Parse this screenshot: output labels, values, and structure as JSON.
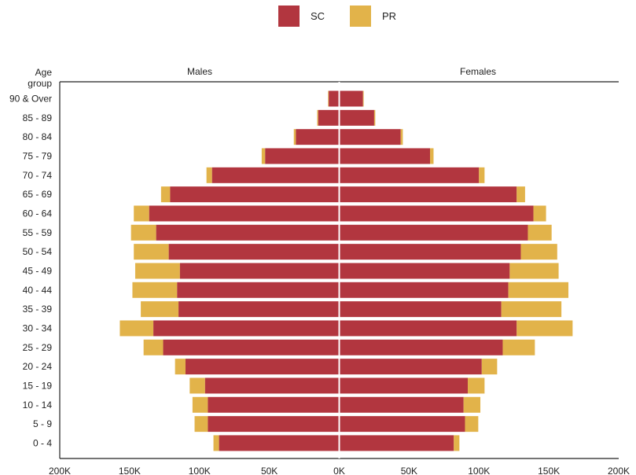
{
  "chart_data": {
    "type": "bar",
    "orientation": "horizontal",
    "stacked": true,
    "diverging": true,
    "legend_position": "top-center",
    "grid": false,
    "xlim": [
      -200000,
      200000
    ],
    "x_ticks": [
      -200000,
      -150000,
      -100000,
      -50000,
      0,
      50000,
      100000,
      150000,
      200000
    ],
    "x_tick_labels": [
      "200K",
      "150K",
      "100K",
      "50K",
      "0K",
      "50K",
      "100K",
      "150K",
      "200K"
    ],
    "y_axis_title_line1": "Age",
    "y_axis_title_line2": "group",
    "side_labels": {
      "left": "Males",
      "right": "Females"
    },
    "categories": [
      "90 & Over",
      "85 - 89",
      "80 - 84",
      "75 - 79",
      "70 - 74",
      "65 - 69",
      "60 - 64",
      "55 - 59",
      "50 - 54",
      "45 - 49",
      "40 - 44",
      "35 - 39",
      "30 - 34",
      "25 - 29",
      "20 - 24",
      "15 - 19",
      "10 - 14",
      "5 - 9",
      "0 - 4"
    ],
    "series": [
      {
        "name": "SC",
        "color": "#B2363F",
        "males": [
          7500,
          15000,
          31000,
          53000,
          91000,
          121000,
          136000,
          131000,
          122000,
          114000,
          116000,
          115000,
          133000,
          126000,
          110000,
          96000,
          94000,
          94000,
          86000
        ],
        "females": [
          17000,
          25000,
          44000,
          65000,
          100000,
          127000,
          139000,
          135000,
          130000,
          122000,
          121000,
          116000,
          127000,
          117000,
          102000,
          92000,
          89000,
          90000,
          82000
        ]
      },
      {
        "name": "PR",
        "color": "#E2B34A",
        "males": [
          500,
          800,
          1500,
          2500,
          4000,
          6500,
          11000,
          18000,
          25000,
          32000,
          32000,
          27000,
          24000,
          14000,
          7500,
          11000,
          11000,
          9500,
          4000
        ],
        "females": [
          500,
          800,
          1500,
          2500,
          4000,
          6000,
          9000,
          17000,
          26000,
          35000,
          43000,
          43000,
          40000,
          23000,
          11000,
          12000,
          12000,
          9500,
          4000
        ]
      }
    ]
  }
}
